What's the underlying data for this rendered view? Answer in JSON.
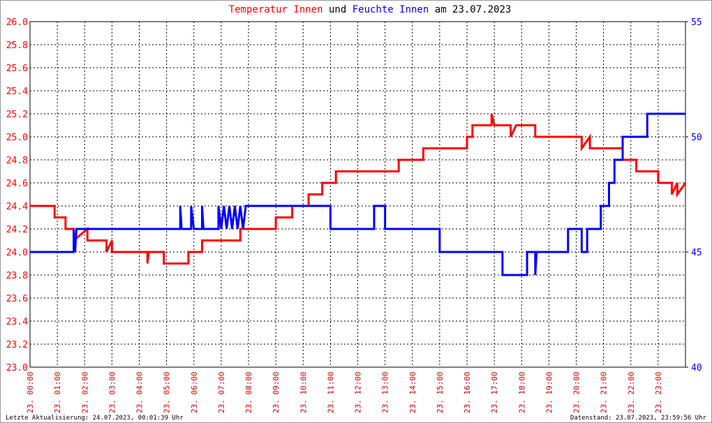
{
  "chart_data": {
    "type": "line",
    "title_connectors": [
      "und",
      "am 23.07.2023"
    ],
    "footnotes": [
      "Letzte Aktualisierung: 24.07.2023, 00:01:39 Uhr",
      "Datenstand: 23.07.2023, 23:59:56 Uhr"
    ],
    "grid": true,
    "xlim": [
      0,
      24
    ],
    "xticks": [
      {
        "value": 0,
        "label": "23. 00:00"
      },
      {
        "value": 1,
        "label": "23. 01:00"
      },
      {
        "value": 2,
        "label": "23. 02:00"
      },
      {
        "value": 3,
        "label": "23. 03:00"
      },
      {
        "value": 4,
        "label": "23. 04:00"
      },
      {
        "value": 5,
        "label": "23. 05:00"
      },
      {
        "value": 6,
        "label": "23. 06:00"
      },
      {
        "value": 7,
        "label": "23. 07:00"
      },
      {
        "value": 8,
        "label": "23. 08:00"
      },
      {
        "value": 9,
        "label": "23. 09:00"
      },
      {
        "value": 10,
        "label": "23. 10:00"
      },
      {
        "value": 11,
        "label": "23. 11:00"
      },
      {
        "value": 12,
        "label": "23. 12:00"
      },
      {
        "value": 13,
        "label": "23. 13:00"
      },
      {
        "value": 14,
        "label": "23. 14:00"
      },
      {
        "value": 15,
        "label": "23. 15:00"
      },
      {
        "value": 16,
        "label": "23. 16:00"
      },
      {
        "value": 17,
        "label": "23. 17:00"
      },
      {
        "value": 18,
        "label": "23. 18:00"
      },
      {
        "value": 19,
        "label": "23. 19:00"
      },
      {
        "value": 20,
        "label": "23. 20:00"
      },
      {
        "value": 21,
        "label": "23. 21:00"
      },
      {
        "value": 22,
        "label": "23. 22:00"
      },
      {
        "value": 23,
        "label": "23. 23:00"
      }
    ],
    "ylim": [
      23.0,
      26.0
    ],
    "yticks": [
      {
        "value": 23,
        "label": "23.0"
      },
      23.2,
      23.4,
      23.6,
      23.8,
      {
        "value": 24,
        "label": "24.0"
      },
      24.2,
      24.4,
      24.6,
      24.8,
      {
        "value": 25,
        "label": "25.0"
      },
      25.2,
      25.4,
      25.6,
      25.8,
      {
        "value": 26,
        "label": "26.0"
      }
    ],
    "y2lim": [
      40,
      55
    ],
    "y2ticks": [
      40,
      45,
      50,
      55
    ],
    "series": [
      {
        "name": "Temperatur Innen",
        "color": "#ff0000",
        "axis": "y",
        "x": [
          0,
          0.9,
          0.9,
          1.3,
          1.3,
          1.6,
          1.6,
          2.1,
          2.1,
          2.8,
          2.8,
          3.0,
          3.0,
          4.3,
          4.3,
          4.35,
          4.9,
          4.9,
          5.8,
          5.8,
          6.3,
          6.3,
          7.7,
          7.7,
          9.0,
          9.0,
          9.6,
          9.6,
          10.2,
          10.2,
          10.7,
          10.7,
          11.2,
          11.2,
          13.5,
          13.5,
          14.4,
          14.4,
          16.0,
          16.0,
          16.2,
          16.2,
          16.9,
          16.9,
          17.0,
          17.6,
          17.6,
          17.8,
          18.5,
          18.5,
          20.2,
          20.2,
          20.5,
          20.5,
          21.7,
          21.7,
          22.2,
          22.2,
          23.0,
          23.0,
          23.5,
          23.5,
          23.7,
          23.7,
          24
        ],
        "values": [
          24.4,
          24.4,
          24.3,
          24.3,
          24.2,
          24.2,
          24.1,
          24.2,
          24.1,
          24.1,
          24.0,
          24.1,
          24.0,
          24.0,
          23.9,
          24.0,
          24.0,
          23.9,
          23.9,
          24.0,
          24.0,
          24.1,
          24.1,
          24.2,
          24.2,
          24.3,
          24.3,
          24.4,
          24.4,
          24.5,
          24.5,
          24.6,
          24.6,
          24.7,
          24.7,
          24.8,
          24.8,
          24.9,
          24.9,
          25.0,
          25.0,
          25.1,
          25.1,
          25.2,
          25.1,
          25.1,
          25.0,
          25.1,
          25.1,
          25.0,
          25.0,
          24.9,
          25.0,
          24.9,
          24.9,
          24.8,
          24.8,
          24.7,
          24.7,
          24.6,
          24.6,
          24.5,
          24.6,
          24.5,
          24.6
        ]
      },
      {
        "name": "Feuchte Innen",
        "color": "#0000ff",
        "axis": "y2",
        "x": [
          0,
          1.6,
          1.6,
          1.65,
          1.7,
          5.5,
          5.5,
          5.55,
          5.9,
          5.9,
          6.0,
          6.3,
          6.3,
          6.35,
          6.9,
          6.9,
          7.0,
          7.1,
          7.2,
          7.3,
          7.4,
          7.5,
          7.6,
          7.7,
          7.8,
          7.9,
          11.0,
          11.0,
          12.6,
          12.6,
          13.0,
          13.0,
          15.0,
          15.0,
          17.3,
          17.3,
          18.2,
          18.2,
          18.5,
          18.5,
          18.55,
          19.7,
          19.7,
          20.2,
          20.2,
          20.4,
          20.4,
          20.9,
          20.9,
          21.2,
          21.2,
          21.4,
          21.4,
          21.7,
          21.7,
          22.6,
          22.6,
          24
        ],
        "values": [
          45,
          45,
          46,
          45,
          46,
          46,
          47,
          46,
          46,
          47,
          46,
          46,
          47,
          46,
          46,
          47,
          46,
          47,
          46,
          47,
          46,
          47,
          46,
          47,
          46,
          47,
          47,
          46,
          46,
          47,
          47,
          46,
          46,
          45,
          45,
          44,
          44,
          45,
          45,
          44,
          45,
          45,
          46,
          46,
          45,
          45,
          46,
          46,
          47,
          47,
          48,
          48,
          49,
          49,
          50,
          50,
          51,
          51
        ]
      }
    ]
  }
}
